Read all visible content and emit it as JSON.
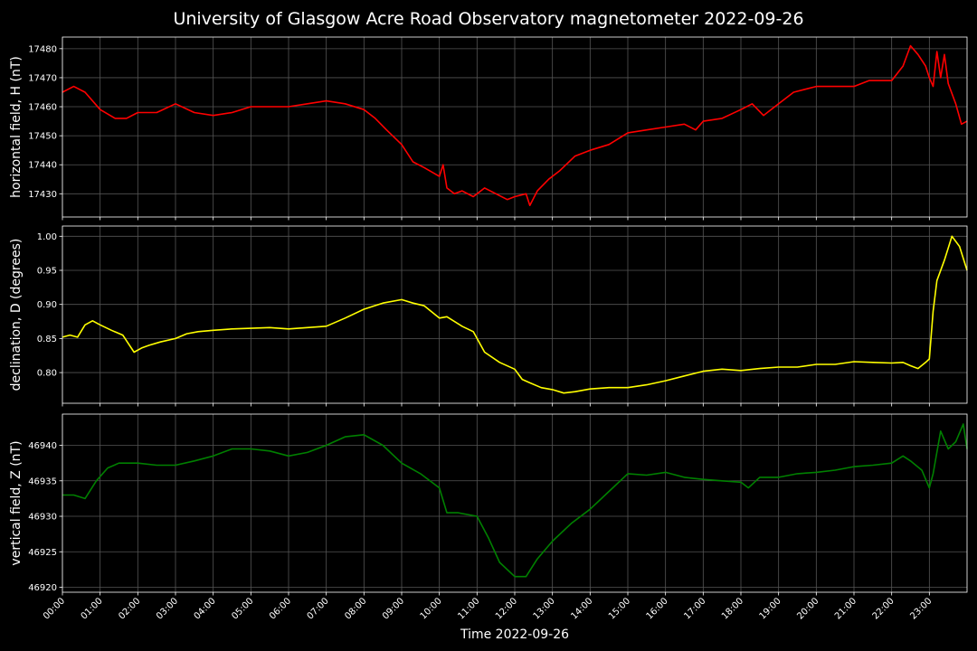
{
  "title": "University of Glasgow Acre Road Observatory magnetometer 2022-09-26",
  "chart_data": {
    "type": "line",
    "xlabel": "Time 2022-09-26",
    "x_unit": "hours",
    "x_ticks": [
      "00:00",
      "01:00",
      "02:00",
      "03:00",
      "04:00",
      "05:00",
      "06:00",
      "07:00",
      "08:00",
      "09:00",
      "10:00",
      "11:00",
      "12:00",
      "13:00",
      "14:00",
      "15:00",
      "16:00",
      "17:00",
      "18:00",
      "19:00",
      "20:00",
      "21:00",
      "22:00",
      "23:00"
    ],
    "xlim": [
      0,
      24
    ],
    "grid": true,
    "panels": [
      {
        "ylabel": "horizontal field, H (nT)",
        "color": "#ff0000",
        "ylim": [
          17422,
          17484
        ],
        "yticks": [
          17430,
          17440,
          17450,
          17460,
          17470,
          17480
        ],
        "series": {
          "x": [
            0,
            0.3,
            0.6,
            1,
            1.4,
            1.7,
            2,
            2.5,
            3,
            3.5,
            4,
            4.5,
            5,
            5.5,
            6,
            6.5,
            7,
            7.5,
            8,
            8.3,
            8.6,
            9,
            9.3,
            9.6,
            10,
            10.1,
            10.2,
            10.4,
            10.6,
            10.9,
            11.2,
            11.5,
            11.8,
            12,
            12.3,
            12.4,
            12.6,
            12.9,
            13.2,
            13.6,
            14,
            14.5,
            15,
            15.5,
            16,
            16.5,
            16.8,
            17,
            17.5,
            18,
            18.3,
            18.6,
            19,
            19.4,
            20,
            20.5,
            21,
            21.4,
            22,
            22.3,
            22.5,
            22.7,
            22.9,
            23,
            23.1,
            23.2,
            23.3,
            23.4,
            23.5,
            23.7,
            23.85,
            24
          ],
          "y": [
            17465,
            17467,
            17465,
            17459,
            17456,
            17456,
            17458,
            17458,
            17461,
            17458,
            17457,
            17458,
            17460,
            17460,
            17460,
            17461,
            17462,
            17461,
            17459,
            17456,
            17452,
            17447,
            17441,
            17439,
            17436,
            17440,
            17432,
            17430,
            17431,
            17429,
            17432,
            17430,
            17428,
            17429,
            17430,
            17426,
            17431,
            17435,
            17438,
            17443,
            17445,
            17447,
            17451,
            17452,
            17453,
            17454,
            17452,
            17455,
            17456,
            17459,
            17461,
            17457,
            17461,
            17465,
            17467,
            17467,
            17467,
            17469,
            17469,
            17474,
            17481,
            17478,
            17474,
            17470,
            17467,
            17479,
            17470,
            17478,
            17468,
            17461,
            17454,
            17455
          ]
        }
      },
      {
        "ylabel": "declination, D (degrees)",
        "color": "#ffff00",
        "ylim": [
          0.755,
          1.015
        ],
        "yticks": [
          0.8,
          0.85,
          0.9,
          0.95,
          1.0
        ],
        "series": {
          "x": [
            0,
            0.2,
            0.4,
            0.6,
            0.8,
            1,
            1.3,
            1.6,
            1.9,
            2.1,
            2.3,
            2.6,
            3,
            3.3,
            3.6,
            4,
            4.5,
            5,
            5.5,
            6,
            6.5,
            7,
            7.5,
            8,
            8.5,
            9,
            9.3,
            9.6,
            10,
            10.2,
            10.6,
            10.9,
            11.2,
            11.6,
            12,
            12.2,
            12.4,
            12.7,
            13,
            13.3,
            13.6,
            14,
            14.5,
            15,
            15.5,
            16,
            16.5,
            17,
            17.5,
            18,
            18.5,
            19,
            19.5,
            20,
            20.5,
            21,
            21.5,
            22,
            22.3,
            22.5,
            22.7,
            22.9,
            23,
            23.1,
            23.2,
            23.4,
            23.6,
            23.8,
            24
          ],
          "y": [
            0.852,
            0.855,
            0.852,
            0.87,
            0.876,
            0.87,
            0.862,
            0.855,
            0.83,
            0.836,
            0.84,
            0.845,
            0.85,
            0.857,
            0.86,
            0.862,
            0.864,
            0.865,
            0.866,
            0.864,
            0.866,
            0.868,
            0.88,
            0.893,
            0.902,
            0.907,
            0.902,
            0.898,
            0.88,
            0.882,
            0.868,
            0.86,
            0.83,
            0.815,
            0.805,
            0.79,
            0.785,
            0.778,
            0.775,
            0.77,
            0.772,
            0.776,
            0.778,
            0.778,
            0.782,
            0.788,
            0.795,
            0.802,
            0.805,
            0.803,
            0.806,
            0.808,
            0.808,
            0.812,
            0.812,
            0.816,
            0.815,
            0.814,
            0.815,
            0.81,
            0.806,
            0.815,
            0.82,
            0.89,
            0.935,
            0.965,
            1.0,
            0.985,
            0.95
          ]
        }
      },
      {
        "ylabel": "vertical field, Z (nT)",
        "color": "#008000",
        "ylim": [
          46919.3,
          46944.4
        ],
        "yticks": [
          46920,
          46925,
          46930,
          46935,
          46940
        ],
        "series": {
          "x": [
            0,
            0.3,
            0.6,
            0.9,
            1.2,
            1.5,
            2,
            2.5,
            3,
            3.5,
            4,
            4.5,
            5,
            5.5,
            6,
            6.5,
            7,
            7.5,
            8,
            8.5,
            9,
            9.5,
            10,
            10.2,
            10.5,
            11,
            11.3,
            11.6,
            12,
            12.3,
            12.6,
            13,
            13.5,
            14,
            14.5,
            15,
            15.5,
            16,
            16.5,
            17,
            17.5,
            18,
            18.2,
            18.5,
            19,
            19.5,
            20,
            20.5,
            21,
            21.5,
            22,
            22.3,
            22.5,
            22.8,
            23,
            23.1,
            23.3,
            23.5,
            23.7,
            23.9,
            24
          ],
          "y": [
            46933,
            46933,
            46932.5,
            46935,
            46936.8,
            46937.5,
            46937.5,
            46937.2,
            46937.2,
            46937.8,
            46938.5,
            46939.5,
            46939.5,
            46939.2,
            46938.5,
            46939,
            46940,
            46941.2,
            46941.5,
            46940,
            46937.5,
            46936,
            46934,
            46930.5,
            46930.5,
            46930,
            46927,
            46923.5,
            46921.5,
            46921.5,
            46924,
            46926.5,
            46929,
            46931,
            46933.5,
            46936,
            46935.8,
            46936.2,
            46935.5,
            46935.2,
            46935,
            46934.8,
            46934,
            46935.5,
            46935.5,
            46936,
            46936.2,
            46936.5,
            46937,
            46937.2,
            46937.5,
            46938.5,
            46937.8,
            46936.5,
            46934,
            46936,
            46942,
            46939.5,
            46940.5,
            46943,
            46939.5
          ]
        }
      }
    ]
  }
}
